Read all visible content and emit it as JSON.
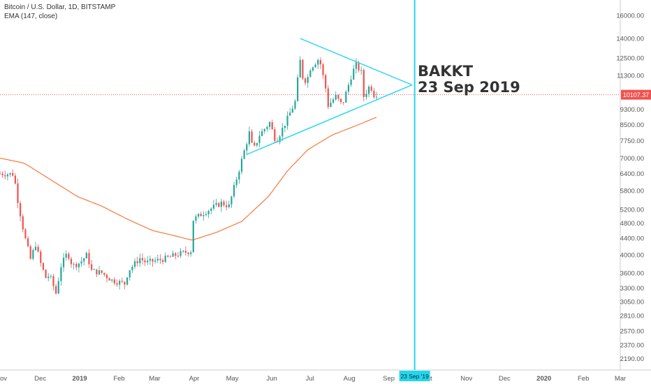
{
  "header": {
    "symbol_line": "Bitcoin / U.S. Dollar, 1D, BITSTAMP",
    "indicator_line": "EMA (147, close)"
  },
  "annotation": {
    "line1": "BAKKT",
    "line2": "23 Sep 2019"
  },
  "colors": {
    "up": "#26a69a",
    "down": "#ef5350",
    "ema": "#f5783c",
    "triangle": "#22d6ee",
    "vline": "#22d6ee",
    "price_line": "#ef5350",
    "price_label_bg": "#ef5350",
    "axis_text": "#555555"
  },
  "chart_data": {
    "type": "candlestick",
    "title": "Bitcoin / U.S. Dollar, 1D, BITSTAMP",
    "y_scale": "log",
    "ylim": [
      2050,
      17500
    ],
    "y_ticks": [
      16000,
      14000,
      12500,
      11300,
      9300,
      8500,
      7750,
      7000,
      6400,
      5800,
      5200,
      4800,
      4400,
      4000,
      3600,
      3300,
      3050,
      2810,
      2570,
      2370,
      2190
    ],
    "y_tick_labels": [
      "16000.00",
      "14000.00",
      "12500.00",
      "11300.00",
      "9300.00",
      "8500.00",
      "7750.00",
      "7000.00",
      "6400.00",
      "5800.00",
      "5200.00",
      "4800.00",
      "4400.00",
      "4000.00",
      "3600.00",
      "3300.00",
      "3050.00",
      "2810.00",
      "2570.00",
      "2370.00",
      "2190.00"
    ],
    "x_labels": [
      "ov",
      "Dec",
      "2019",
      "Feb",
      "Mar",
      "Apr",
      "May",
      "Jun",
      "Jul",
      "Aug",
      "Sep",
      "Oct",
      "Nov",
      "Dec",
      "2020",
      "Feb",
      "Mar"
    ],
    "x_label_dates": [
      "2018-11-01",
      "2018-12-01",
      "2019-01-01",
      "2019-02-01",
      "2019-03-01",
      "2019-04-01",
      "2019-05-01",
      "2019-06-01",
      "2019-07-01",
      "2019-08-01",
      "2019-09-01",
      "2019-10-01",
      "2019-11-01",
      "2019-12-01",
      "2020-01-01",
      "2020-02-01",
      "2020-03-01"
    ],
    "x_range": [
      "2018-11-01",
      "2020-03-01"
    ],
    "current_price": 10107.37,
    "current_price_label": "10107.37",
    "marker_date": "2019-09-23",
    "marker_label": "23 Sep '19",
    "price_path": [
      [
        "2018-11-01",
        6400
      ],
      [
        "2018-11-12",
        6380
      ],
      [
        "2018-11-14",
        5700
      ],
      [
        "2018-11-20",
        4500
      ],
      [
        "2018-11-25",
        3900
      ],
      [
        "2018-11-29",
        4250
      ],
      [
        "2018-12-03",
        3800
      ],
      [
        "2018-12-07",
        3500
      ],
      [
        "2018-12-10",
        3550
      ],
      [
        "2018-12-15",
        3200
      ],
      [
        "2018-12-19",
        3750
      ],
      [
        "2018-12-24",
        4050
      ],
      [
        "2018-12-28",
        3750
      ],
      [
        "2019-01-03",
        3820
      ],
      [
        "2019-01-09",
        4020
      ],
      [
        "2019-01-11",
        3650
      ],
      [
        "2019-01-20",
        3600
      ],
      [
        "2019-01-28",
        3450
      ],
      [
        "2019-02-07",
        3380
      ],
      [
        "2019-02-10",
        3650
      ],
      [
        "2019-02-19",
        3920
      ],
      [
        "2019-02-24",
        3820
      ],
      [
        "2019-03-01",
        3850
      ],
      [
        "2019-03-10",
        3900
      ],
      [
        "2019-03-20",
        4000
      ],
      [
        "2019-04-01",
        4100
      ],
      [
        "2019-04-02",
        4900
      ],
      [
        "2019-04-10",
        5100
      ],
      [
        "2019-04-24",
        5400
      ],
      [
        "2019-04-30",
        5300
      ],
      [
        "2019-05-11",
        7100
      ],
      [
        "2019-05-16",
        8100
      ],
      [
        "2019-05-19",
        7300
      ],
      [
        "2019-05-24",
        8000
      ],
      [
        "2019-06-01",
        8600
      ],
      [
        "2019-06-06",
        7700
      ],
      [
        "2019-06-15",
        8800
      ],
      [
        "2019-06-21",
        9700
      ],
      [
        "2019-06-23",
        11000
      ],
      [
        "2019-06-26",
        13000
      ],
      [
        "2019-06-27",
        11200
      ],
      [
        "2019-06-30",
        10900
      ],
      [
        "2019-07-03",
        11800
      ],
      [
        "2019-07-08",
        12300
      ],
      [
        "2019-07-10",
        12500
      ],
      [
        "2019-07-15",
        10500
      ],
      [
        "2019-07-17",
        9500
      ],
      [
        "2019-07-23",
        10000
      ],
      [
        "2019-07-28",
        9500
      ],
      [
        "2019-08-05",
        11500
      ],
      [
        "2019-08-08",
        12000
      ],
      [
        "2019-08-12",
        11500
      ],
      [
        "2019-08-14",
        10000
      ],
      [
        "2019-08-19",
        10700
      ],
      [
        "2019-08-22",
        10100
      ],
      [
        "2019-08-25",
        10200
      ]
    ],
    "ema_path": [
      [
        "2018-11-01",
        7000
      ],
      [
        "2018-11-20",
        6800
      ],
      [
        "2018-12-10",
        6200
      ],
      [
        "2019-01-01",
        5600
      ],
      [
        "2019-01-20",
        5300
      ],
      [
        "2019-02-10",
        4900
      ],
      [
        "2019-03-01",
        4600
      ],
      [
        "2019-03-20",
        4450
      ],
      [
        "2019-04-01",
        4350
      ],
      [
        "2019-04-20",
        4550
      ],
      [
        "2019-05-10",
        4850
      ],
      [
        "2019-05-31",
        5600
      ],
      [
        "2019-06-15",
        6500
      ],
      [
        "2019-07-01",
        7350
      ],
      [
        "2019-07-20",
        8000
      ],
      [
        "2019-08-10",
        8500
      ],
      [
        "2019-08-25",
        8900
      ]
    ],
    "triangle": [
      [
        "2019-06-25",
        14000
      ],
      [
        "2019-09-21",
        10700
      ],
      [
        "2019-05-14",
        7150
      ]
    ]
  }
}
